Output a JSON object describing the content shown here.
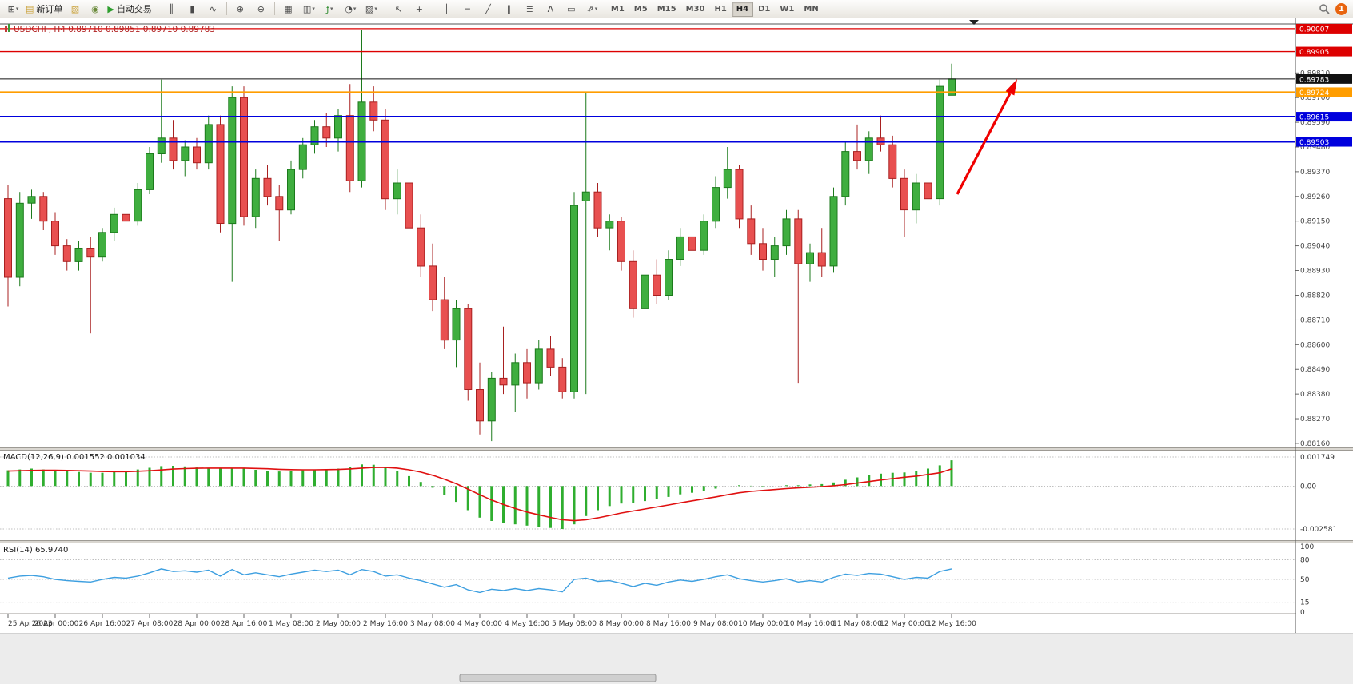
{
  "toolbar": {
    "buttons_left": [
      {
        "name": "new-chart",
        "glyph": "⊞",
        "caret": true
      },
      {
        "name": "new-order",
        "glyph": "▤",
        "label": "新订单",
        "color": "#caa23a"
      },
      {
        "name": "chart-profiles",
        "glyph": "▧",
        "color": "#caa23a"
      },
      {
        "name": "sound-alerts",
        "glyph": "◉",
        "color": "#6a8a3a"
      },
      {
        "name": "auto-trading",
        "glyph": "▶",
        "label": "自动交易",
        "color": "#2e9e2e"
      }
    ],
    "buttons_tools": [
      {
        "name": "bar-chart-type",
        "glyph": "║"
      },
      {
        "name": "candlestick-chart-type",
        "glyph": "▮"
      },
      {
        "name": "line-chart-type",
        "glyph": "∿"
      },
      {
        "sep": true
      },
      {
        "name": "zoom-in",
        "glyph": "⊕"
      },
      {
        "name": "zoom-out",
        "glyph": "⊖"
      },
      {
        "sep": true
      },
      {
        "name": "tile-windows",
        "glyph": "▦"
      },
      {
        "name": "arrange-windows",
        "glyph": "▥",
        "caret": true
      },
      {
        "name": "indicators",
        "glyph": "ƒ",
        "caret": true,
        "color": "#2e8b2e"
      },
      {
        "name": "periods",
        "glyph": "◔",
        "caret": true
      },
      {
        "name": "templates",
        "glyph": "▨",
        "caret": true
      },
      {
        "sep": true
      },
      {
        "name": "cursor",
        "glyph": "↖"
      },
      {
        "name": "crosshair",
        "glyph": "+"
      },
      {
        "sep": true
      },
      {
        "name": "vertical-line-tool",
        "glyph": "│"
      },
      {
        "name": "horizontal-line-tool",
        "glyph": "─"
      },
      {
        "name": "trendline-tool",
        "glyph": "╱"
      },
      {
        "name": "channel-tool",
        "glyph": "∥"
      },
      {
        "name": "fibonacci-tool",
        "glyph": "≣"
      },
      {
        "name": "text-tool",
        "glyph": "A"
      },
      {
        "name": "label-tool",
        "glyph": "▭"
      },
      {
        "name": "arrows-tool",
        "glyph": "⇗",
        "caret": true
      }
    ],
    "timeframes": [
      "M1",
      "M5",
      "M15",
      "M30",
      "H1",
      "H4",
      "D1",
      "W1",
      "MN"
    ],
    "active_timeframe": "H4",
    "notification_count": "1"
  },
  "chart_data": {
    "type": "candlestick",
    "symbol": "USDCHF",
    "period": "H4",
    "title": "USDCHF, H4  0.89710 0.89851 0.89710 0.89783",
    "price_axis": {
      "max": 0.90028,
      "min": 0.88142,
      "grid_labels": [
        "0.89810",
        "0.89700",
        "0.89590",
        "0.89480",
        "0.89370",
        "0.89260",
        "0.89150",
        "0.89040",
        "0.88930",
        "0.88820",
        "0.88710",
        "0.88600",
        "0.88490",
        "0.88380",
        "0.88270",
        "0.88160"
      ]
    },
    "time_labels": [
      "25 Apr 2023",
      "26 Apr 00:00",
      "26 Apr 16:00",
      "27 Apr 08:00",
      "28 Apr 00:00",
      "28 Apr 16:00",
      "1 May 08:00",
      "2 May 00:00",
      "2 May 16:00",
      "3 May 08:00",
      "4 May 00:00",
      "4 May 16:00",
      "5 May 08:00",
      "8 May 00:00",
      "8 May 16:00",
      "9 May 08:00",
      "10 May 00:00",
      "10 May 16:00",
      "11 May 08:00",
      "12 May 00:00",
      "12 May 16:00"
    ],
    "ohlc": [
      [
        0.8925,
        0.8931,
        0.8877,
        0.889
      ],
      [
        0.889,
        0.8928,
        0.8886,
        0.8923
      ],
      [
        0.8923,
        0.8929,
        0.8916,
        0.8926
      ],
      [
        0.8926,
        0.8928,
        0.8911,
        0.8915
      ],
      [
        0.8915,
        0.8919,
        0.89,
        0.8904
      ],
      [
        0.8904,
        0.8907,
        0.8893,
        0.8897
      ],
      [
        0.8897,
        0.8906,
        0.8893,
        0.8903
      ],
      [
        0.8903,
        0.8908,
        0.8865,
        0.8899
      ],
      [
        0.8899,
        0.8912,
        0.8897,
        0.891
      ],
      [
        0.891,
        0.8921,
        0.8906,
        0.8918
      ],
      [
        0.8918,
        0.8925,
        0.8912,
        0.8915
      ],
      [
        0.8915,
        0.8932,
        0.8913,
        0.8929
      ],
      [
        0.8929,
        0.8948,
        0.8927,
        0.8945
      ],
      [
        0.8945,
        0.8978,
        0.8941,
        0.8952
      ],
      [
        0.8952,
        0.896,
        0.8938,
        0.8942
      ],
      [
        0.8942,
        0.8951,
        0.8935,
        0.8948
      ],
      [
        0.8948,
        0.8952,
        0.8938,
        0.8941
      ],
      [
        0.8941,
        0.8962,
        0.8938,
        0.8958
      ],
      [
        0.8958,
        0.8962,
        0.891,
        0.8914
      ],
      [
        0.8914,
        0.8975,
        0.8888,
        0.897
      ],
      [
        0.897,
        0.8975,
        0.8913,
        0.8917
      ],
      [
        0.8917,
        0.8938,
        0.8912,
        0.8934
      ],
      [
        0.8934,
        0.894,
        0.8922,
        0.8926
      ],
      [
        0.8926,
        0.8931,
        0.8906,
        0.892
      ],
      [
        0.892,
        0.8942,
        0.8918,
        0.8938
      ],
      [
        0.8938,
        0.8952,
        0.8934,
        0.8949
      ],
      [
        0.8949,
        0.896,
        0.8945,
        0.8957
      ],
      [
        0.8957,
        0.8963,
        0.8948,
        0.8952
      ],
      [
        0.8952,
        0.8965,
        0.8946,
        0.8962
      ],
      [
        0.8962,
        0.8976,
        0.8928,
        0.8933
      ],
      [
        0.8933,
        0.9,
        0.893,
        0.8968
      ],
      [
        0.8968,
        0.8975,
        0.8955,
        0.896
      ],
      [
        0.896,
        0.8965,
        0.892,
        0.8925
      ],
      [
        0.8925,
        0.8938,
        0.8918,
        0.8932
      ],
      [
        0.8932,
        0.8936,
        0.8908,
        0.8912
      ],
      [
        0.8912,
        0.8918,
        0.889,
        0.8895
      ],
      [
        0.8895,
        0.8905,
        0.8875,
        0.888
      ],
      [
        0.888,
        0.889,
        0.8858,
        0.8862
      ],
      [
        0.8862,
        0.888,
        0.885,
        0.8876
      ],
      [
        0.8876,
        0.8878,
        0.8835,
        0.884
      ],
      [
        0.884,
        0.8852,
        0.882,
        0.8826
      ],
      [
        0.8826,
        0.8848,
        0.8817,
        0.8845
      ],
      [
        0.8845,
        0.8868,
        0.8838,
        0.8842
      ],
      [
        0.8842,
        0.8856,
        0.883,
        0.8852
      ],
      [
        0.8852,
        0.8858,
        0.8836,
        0.8843
      ],
      [
        0.8843,
        0.8862,
        0.884,
        0.8858
      ],
      [
        0.8858,
        0.8864,
        0.8846,
        0.885
      ],
      [
        0.885,
        0.8854,
        0.8836,
        0.8839
      ],
      [
        0.8839,
        0.8928,
        0.8836,
        0.8922
      ],
      [
        0.8924,
        0.8972,
        0.8838,
        0.8928
      ],
      [
        0.8928,
        0.8932,
        0.8908,
        0.8912
      ],
      [
        0.8912,
        0.8918,
        0.8902,
        0.8915
      ],
      [
        0.8915,
        0.8917,
        0.8893,
        0.8897
      ],
      [
        0.8897,
        0.8902,
        0.8872,
        0.8876
      ],
      [
        0.8876,
        0.8895,
        0.887,
        0.8891
      ],
      [
        0.8891,
        0.8898,
        0.8878,
        0.8882
      ],
      [
        0.8882,
        0.8902,
        0.888,
        0.8898
      ],
      [
        0.8898,
        0.8912,
        0.8895,
        0.8908
      ],
      [
        0.8908,
        0.8914,
        0.8898,
        0.8902
      ],
      [
        0.8902,
        0.8918,
        0.89,
        0.8915
      ],
      [
        0.8915,
        0.8935,
        0.8912,
        0.893
      ],
      [
        0.893,
        0.8948,
        0.8925,
        0.8938
      ],
      [
        0.8938,
        0.894,
        0.8912,
        0.8916
      ],
      [
        0.8916,
        0.8922,
        0.89,
        0.8905
      ],
      [
        0.8905,
        0.8912,
        0.8893,
        0.8898
      ],
      [
        0.8898,
        0.8908,
        0.889,
        0.8904
      ],
      [
        0.8904,
        0.892,
        0.89,
        0.8916
      ],
      [
        0.8916,
        0.892,
        0.8843,
        0.8896
      ],
      [
        0.8896,
        0.8905,
        0.8888,
        0.8901
      ],
      [
        0.8901,
        0.8912,
        0.889,
        0.8895
      ],
      [
        0.8895,
        0.893,
        0.8892,
        0.8926
      ],
      [
        0.8926,
        0.895,
        0.8922,
        0.8946
      ],
      [
        0.8946,
        0.8958,
        0.8938,
        0.8942
      ],
      [
        0.8942,
        0.8955,
        0.8936,
        0.8952
      ],
      [
        0.8952,
        0.8962,
        0.8946,
        0.8949
      ],
      [
        0.8949,
        0.8953,
        0.893,
        0.8934
      ],
      [
        0.8934,
        0.8938,
        0.8908,
        0.892
      ],
      [
        0.892,
        0.8936,
        0.8914,
        0.8932
      ],
      [
        0.8932,
        0.8936,
        0.892,
        0.8925
      ],
      [
        0.8925,
        0.8978,
        0.8922,
        0.8975
      ],
      [
        0.8971,
        0.89851,
        0.8971,
        0.89783
      ]
    ],
    "hlines": [
      {
        "price": 0.90007,
        "label": "0.90007",
        "color": "#dd0000",
        "width": 1.3
      },
      {
        "price": 0.89905,
        "label": "0.89905",
        "color": "#dd0000",
        "width": 1.3
      },
      {
        "price": 0.89724,
        "label": "0.89724",
        "color": "#ff9d00",
        "width": 2
      },
      {
        "price": 0.89615,
        "label": "0.89615",
        "color": "#0000dd",
        "width": 2
      },
      {
        "price": 0.89503,
        "label": "0.89503",
        "color": "#0000dd",
        "width": 2
      }
    ],
    "current_price": {
      "value": 0.89783,
      "label": "0.89783",
      "color": "#111111"
    },
    "trend_arrow": {
      "color": "#f00000"
    },
    "colors": {
      "up_fill": "#3fae3f",
      "up_stroke": "#1c7a1c",
      "down_fill": "#e85050",
      "down_stroke": "#a82020",
      "background": "#ffffff"
    },
    "indicators": {
      "macd": {
        "label": "MACD(12,26,9) 0.001552 0.001034",
        "axis_labels": [
          "0.001749",
          "0.00",
          "-0.002581"
        ],
        "axis_values": [
          0.001749,
          0,
          -0.002581
        ],
        "max": 0.001941,
        "min": -0.003062,
        "histogram_color": "#2fae2f",
        "signal_color": "#e01010",
        "histogram": [
          0.00095,
          0.001,
          0.00105,
          0.001,
          0.00095,
          0.0009,
          0.00085,
          0.0008,
          0.0008,
          0.00085,
          0.0009,
          0.001,
          0.0011,
          0.0012,
          0.00122,
          0.00118,
          0.00112,
          0.0011,
          0.00105,
          0.0011,
          0.00105,
          0.00098,
          0.00092,
          0.00088,
          0.0009,
          0.00095,
          0.001,
          0.00102,
          0.00105,
          0.00115,
          0.0013,
          0.00128,
          0.0011,
          0.0009,
          0.0006,
          0.00025,
          -0.0001,
          -0.00055,
          -0.00095,
          -0.00145,
          -0.0019,
          -0.0021,
          -0.0022,
          -0.0023,
          -0.00238,
          -0.00245,
          -0.00252,
          -0.002581,
          -0.0023,
          -0.0018,
          -0.00145,
          -0.0012,
          -0.00105,
          -0.001,
          -0.0009,
          -0.0008,
          -0.00065,
          -0.0005,
          -0.0004,
          -0.0003,
          -0.00015,
          0,
          5e-05,
          2e-05,
          -2e-05,
          0,
          5e-05,
          5e-05,
          0.0001,
          0.00012,
          0.00022,
          0.00038,
          0.00052,
          0.00065,
          0.00075,
          0.0008,
          0.00082,
          0.0009,
          0.00105,
          0.00125,
          0.001552
        ],
        "signal": [
          0.0009,
          0.00092,
          0.00094,
          0.00095,
          0.00095,
          0.00094,
          0.00092,
          0.0009,
          0.00088,
          0.00087,
          0.00087,
          0.00089,
          0.00092,
          0.00097,
          0.00102,
          0.00105,
          0.00107,
          0.00108,
          0.00108,
          0.00108,
          0.00108,
          0.00106,
          0.00104,
          0.00101,
          0.00099,
          0.00098,
          0.00098,
          0.00099,
          0.001,
          0.00103,
          0.00108,
          0.00112,
          0.00112,
          0.00108,
          0.00098,
          0.00084,
          0.00065,
          0.00041,
          0.00014,
          -0.00018,
          -0.00052,
          -0.00084,
          -0.00111,
          -0.00135,
          -0.00156,
          -0.00173,
          -0.00189,
          -0.00203,
          -0.00208,
          -0.00203,
          -0.00191,
          -0.00177,
          -0.00162,
          -0.0015,
          -0.00138,
          -0.00126,
          -0.00114,
          -0.00101,
          -0.00089,
          -0.00077,
          -0.00065,
          -0.00052,
          -0.0004,
          -0.00032,
          -0.00026,
          -0.00021,
          -0.00015,
          -0.00011,
          -7e-05,
          -3e-05,
          2e-05,
          9e-05,
          0.00018,
          0.00027,
          0.00037,
          0.00045,
          0.00053,
          0.0006,
          0.0007,
          0.0008,
          0.001034
        ]
      },
      "rsi": {
        "label": "RSI(14) 65.9740",
        "axis_labels": [
          "100",
          "80",
          "50",
          "15",
          "0"
        ],
        "axis_values": [
          100,
          80,
          50,
          15,
          0
        ],
        "levels": [
          80,
          50,
          15
        ],
        "line_color": "#3d9fe0",
        "values": [
          52,
          55,
          56,
          54,
          50,
          48,
          47,
          46,
          50,
          53,
          52,
          55,
          60,
          66,
          62,
          63,
          61,
          64,
          55,
          65,
          57,
          60,
          57,
          54,
          58,
          61,
          64,
          62,
          64,
          57,
          65,
          62,
          55,
          57,
          52,
          48,
          43,
          38,
          42,
          34,
          30,
          35,
          33,
          36,
          33,
          36,
          34,
          31,
          50,
          52,
          47,
          48,
          44,
          39,
          44,
          41,
          46,
          49,
          47,
          50,
          54,
          57,
          51,
          48,
          46,
          48,
          51,
          46,
          48,
          46,
          53,
          58,
          56,
          59,
          58,
          54,
          50,
          53,
          52,
          62,
          65.97
        ]
      }
    }
  }
}
